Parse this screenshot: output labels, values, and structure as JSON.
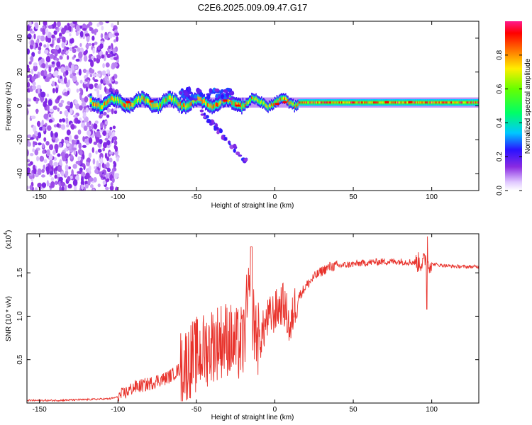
{
  "title": "C2E6.2025.009.09.47.G17",
  "chart_data": [
    {
      "type": "heatmap",
      "xlabel": "Height of straight line (km)",
      "ylabel": "Frequency (Hz)",
      "xlim": [
        -158,
        130
      ],
      "ylim": [
        -50,
        50
      ],
      "xticks": [
        -150,
        -100,
        -50,
        0,
        50,
        100
      ],
      "yticks": [
        -40,
        -20,
        0,
        20,
        40
      ],
      "colorbar": {
        "label": "Normalized spectral amplitude",
        "range": [
          0.0,
          1.0
        ],
        "ticks": [
          "0.0",
          "0.2",
          "0.4",
          "0.6",
          "0.8"
        ],
        "colormap": "white-violet-blue-cyan-green-yellow-orange-red-magenta"
      },
      "features": [
        {
          "name": "scattered noise",
          "x_range": [
            -158,
            -100
          ],
          "y_range": [
            -50,
            50
          ],
          "amplitude": 0.1
        },
        {
          "name": "main signal band",
          "x_range": [
            -118,
            130
          ],
          "center_frequency_hz": 2,
          "amplitude_range": [
            0.3,
            1.0
          ]
        },
        {
          "name": "side branch",
          "x_range": [
            -48,
            -18
          ],
          "y_range": [
            -33,
            -2
          ],
          "amplitude": 0.2
        }
      ]
    },
    {
      "type": "line",
      "xlabel": "Height of straight line (km)",
      "ylabel": "SNR (10 * v/v)",
      "y_multiplier": "(x10",
      "y_multiplier_exp": "4",
      "xlim": [
        -158,
        130
      ],
      "ylim": [
        0.0,
        1.95
      ],
      "xticks": [
        -150,
        -100,
        -50,
        0,
        50,
        100
      ],
      "yticks": [
        0.5,
        1.0,
        1.5
      ],
      "series": [
        {
          "color": "#e8322b",
          "x": [
            -158,
            -140,
            -120,
            -105,
            -100,
            -95,
            -90,
            -85,
            -80,
            -75,
            -70,
            -65,
            -60,
            -55,
            -50,
            -45,
            -40,
            -35,
            -30,
            -25,
            -20,
            -17,
            -15,
            -13,
            -10,
            -5,
            0,
            5,
            8,
            10,
            12,
            15,
            20,
            25,
            30,
            35,
            40,
            50,
            60,
            70,
            80,
            90,
            95,
            97,
            98,
            100,
            110,
            120,
            130
          ],
          "y": [
            0.03,
            0.03,
            0.04,
            0.05,
            0.07,
            0.12,
            0.18,
            0.2,
            0.22,
            0.26,
            0.28,
            0.33,
            0.4,
            0.48,
            0.55,
            0.6,
            0.68,
            0.72,
            0.75,
            0.65,
            0.7,
            1.2,
            0.95,
            0.9,
            0.7,
            0.95,
            1.05,
            1.15,
            1.0,
            0.8,
            1.1,
            1.22,
            1.35,
            1.45,
            1.52,
            1.57,
            1.58,
            1.6,
            1.62,
            1.63,
            1.63,
            1.62,
            1.62,
            1.7,
            1.62,
            1.6,
            1.58,
            1.57,
            1.57
          ]
        }
      ]
    }
  ]
}
